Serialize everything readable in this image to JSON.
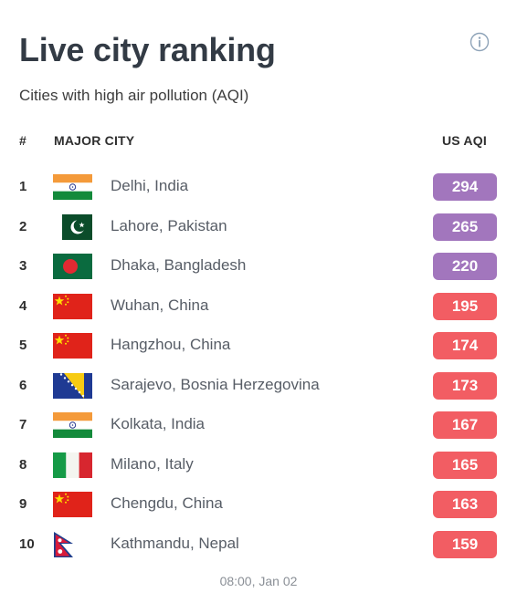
{
  "header": {
    "title": "Live city ranking",
    "subtitle": "Cities with high air pollution (AQI)",
    "info_icon": "info-circle-icon"
  },
  "table": {
    "columns": {
      "rank": "#",
      "city": "MAJOR CITY",
      "aqi": "US AQI"
    },
    "colors": {
      "very_unhealthy": "#a276bd",
      "unhealthy": "#f25d63"
    },
    "rows": [
      {
        "rank": "1",
        "city": "Delhi, India",
        "aqi": "294",
        "flag": "india",
        "level": "very_unhealthy"
      },
      {
        "rank": "2",
        "city": "Lahore, Pakistan",
        "aqi": "265",
        "flag": "pakistan",
        "level": "very_unhealthy"
      },
      {
        "rank": "3",
        "city": "Dhaka, Bangladesh",
        "aqi": "220",
        "flag": "bangladesh",
        "level": "very_unhealthy"
      },
      {
        "rank": "4",
        "city": "Wuhan, China",
        "aqi": "195",
        "flag": "china",
        "level": "unhealthy"
      },
      {
        "rank": "5",
        "city": "Hangzhou, China",
        "aqi": "174",
        "flag": "china",
        "level": "unhealthy"
      },
      {
        "rank": "6",
        "city": "Sarajevo, Bosnia Herzegovina",
        "aqi": "173",
        "flag": "bosnia",
        "level": "unhealthy"
      },
      {
        "rank": "7",
        "city": "Kolkata, India",
        "aqi": "167",
        "flag": "india",
        "level": "unhealthy"
      },
      {
        "rank": "8",
        "city": "Milano, Italy",
        "aqi": "165",
        "flag": "italy",
        "level": "unhealthy"
      },
      {
        "rank": "9",
        "city": "Chengdu, China",
        "aqi": "163",
        "flag": "china",
        "level": "unhealthy"
      },
      {
        "rank": "10",
        "city": "Kathmandu, Nepal",
        "aqi": "159",
        "flag": "nepal",
        "level": "unhealthy"
      }
    ]
  },
  "footer": {
    "timestamp": "08:00, Jan 02"
  }
}
